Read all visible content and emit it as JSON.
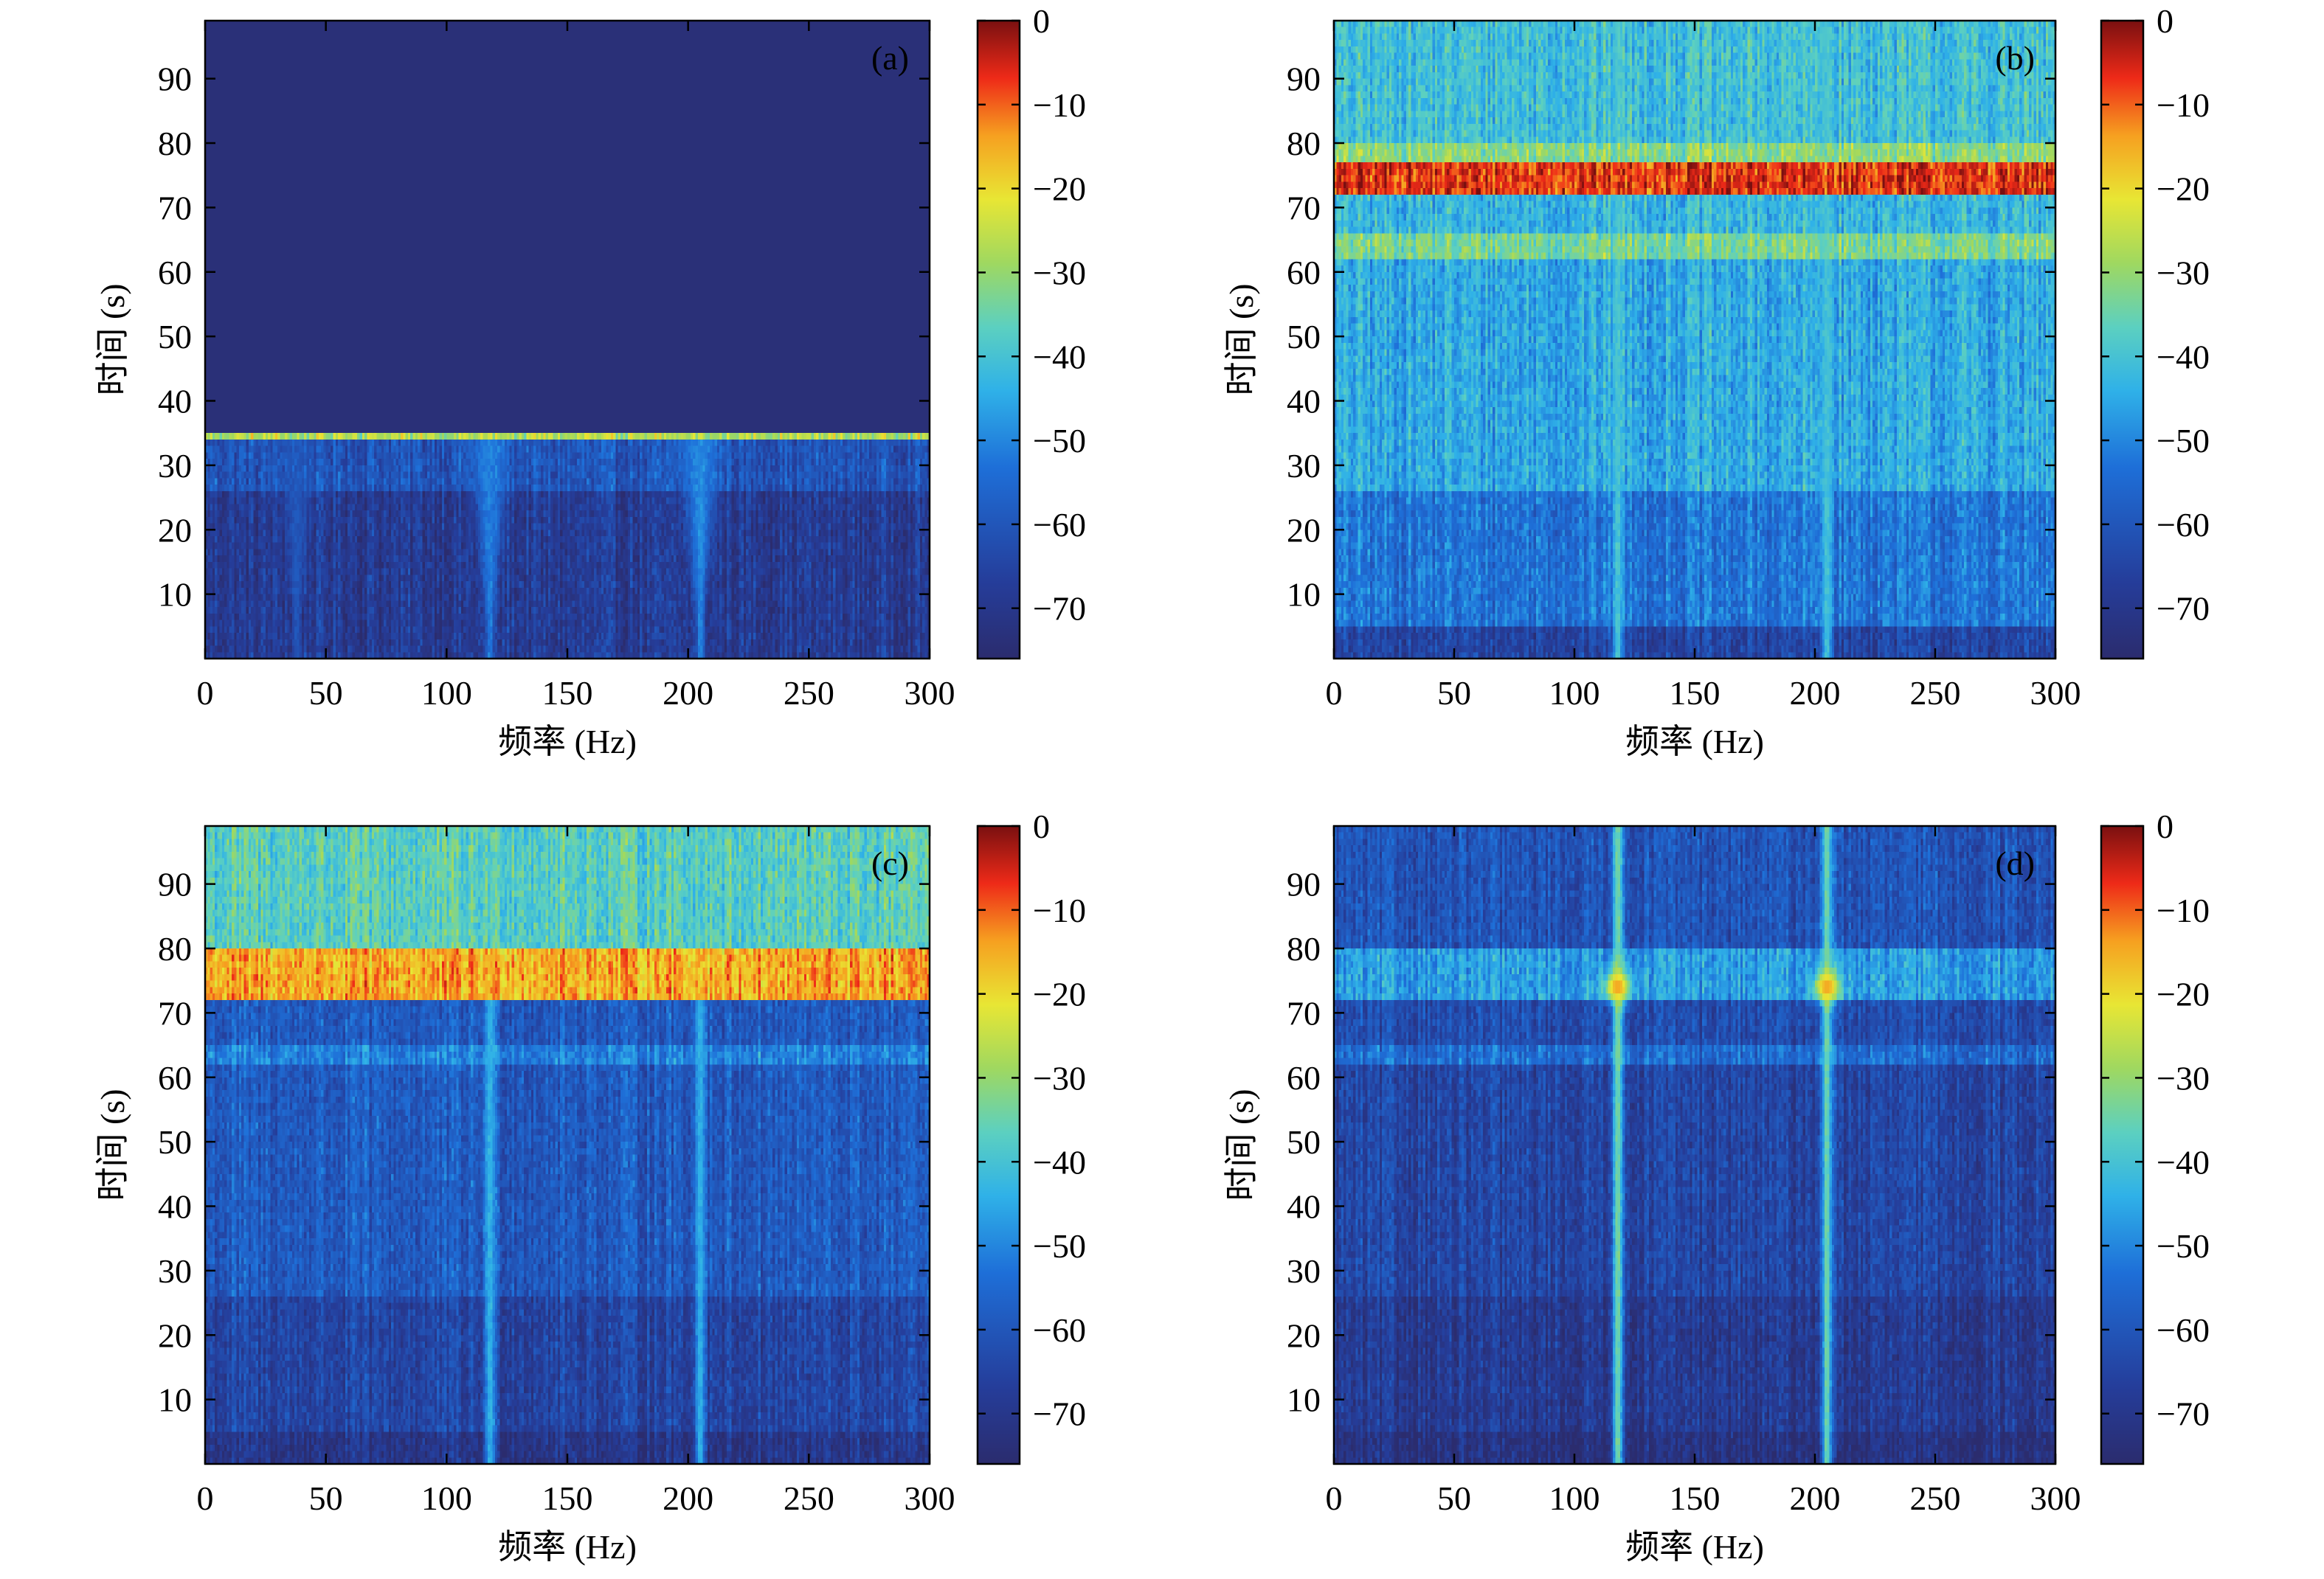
{
  "colorbar": {
    "ticks": [
      0,
      -10,
      -20,
      -30,
      -40,
      -50,
      -60,
      -70
    ],
    "tick_labels": [
      "0",
      "−10",
      "−20",
      "−30",
      "−40",
      "−50",
      "−60",
      "−70"
    ],
    "range": [
      -76,
      0
    ],
    "colormap": "jet"
  },
  "chart_data": [
    {
      "type": "heatmap",
      "panel_label": "(a)",
      "xlabel": "频率 (Hz)",
      "ylabel": "时间 (s)",
      "xlim": [
        0,
        300
      ],
      "ylim": [
        0,
        99
      ],
      "xticks": [
        0,
        50,
        100,
        150,
        200,
        250,
        300
      ],
      "yticks": [
        10,
        20,
        30,
        40,
        50,
        60,
        70,
        80,
        90
      ],
      "background_db": -74,
      "signal_bands": [
        {
          "t_from": 0,
          "t_to": 26,
          "level_db": -70
        },
        {
          "t_from": 26,
          "t_to": 34,
          "level_db": -62
        },
        {
          "t_from": 34,
          "t_to": 35,
          "level_db": -28
        }
      ],
      "signal_end_s": 35,
      "lines": [
        {
          "f_hz": 118,
          "level_db": -52,
          "t_from": 0,
          "t_to": 35
        },
        {
          "f_hz": 205,
          "level_db": -50,
          "t_from": 0,
          "t_to": 35
        },
        {
          "f_hz": 38,
          "level_db": -60,
          "t_from": 0,
          "t_to": 35
        }
      ],
      "colorbar_range": [
        -76,
        0
      ]
    },
    {
      "type": "heatmap",
      "panel_label": "(b)",
      "xlabel": "频率 (Hz)",
      "ylabel": "时间 (s)",
      "xlim": [
        0,
        300
      ],
      "ylim": [
        0,
        99
      ],
      "xticks": [
        0,
        50,
        100,
        150,
        200,
        250,
        300
      ],
      "yticks": [
        10,
        20,
        30,
        40,
        50,
        60,
        70,
        80,
        90
      ],
      "background_db": -50,
      "signal_bands": [
        {
          "t_from": 0,
          "t_to": 5,
          "level_db": -66
        },
        {
          "t_from": 5,
          "t_to": 26,
          "level_db": -54
        },
        {
          "t_from": 26,
          "t_to": 62,
          "level_db": -46
        },
        {
          "t_from": 62,
          "t_to": 66,
          "level_db": -34
        },
        {
          "t_from": 66,
          "t_to": 72,
          "level_db": -44
        },
        {
          "t_from": 72,
          "t_to": 77,
          "level_db": -8
        },
        {
          "t_from": 77,
          "t_to": 80,
          "level_db": -32
        },
        {
          "t_from": 80,
          "t_to": 99,
          "level_db": -42
        }
      ],
      "lines": [
        {
          "f_hz": 118,
          "level_db": -40,
          "t_from": 0,
          "t_to": 99
        },
        {
          "f_hz": 205,
          "level_db": -40,
          "t_from": 0,
          "t_to": 99
        }
      ],
      "colorbar_range": [
        -76,
        0
      ]
    },
    {
      "type": "heatmap",
      "panel_label": "(c)",
      "xlabel": "频率 (Hz)",
      "ylabel": "时间 (s)",
      "xlim": [
        0,
        300
      ],
      "ylim": [
        0,
        99
      ],
      "xticks": [
        0,
        50,
        100,
        150,
        200,
        250,
        300
      ],
      "yticks": [
        10,
        20,
        30,
        40,
        50,
        60,
        70,
        80,
        90
      ],
      "background_db": -60,
      "signal_bands": [
        {
          "t_from": 0,
          "t_to": 5,
          "level_db": -72
        },
        {
          "t_from": 5,
          "t_to": 26,
          "level_db": -66
        },
        {
          "t_from": 26,
          "t_to": 62,
          "level_db": -60
        },
        {
          "t_from": 62,
          "t_to": 65,
          "level_db": -52
        },
        {
          "t_from": 65,
          "t_to": 72,
          "level_db": -60
        },
        {
          "t_from": 72,
          "t_to": 80,
          "level_db": -16
        },
        {
          "t_from": 80,
          "t_to": 99,
          "level_db": -38
        }
      ],
      "lines": [
        {
          "f_hz": 118,
          "level_db": -44,
          "t_from": 0,
          "t_to": 99
        },
        {
          "f_hz": 205,
          "level_db": -44,
          "t_from": 0,
          "t_to": 99
        }
      ],
      "colorbar_range": [
        -76,
        0
      ]
    },
    {
      "type": "heatmap",
      "panel_label": "(d)",
      "xlabel": "频率 (Hz)",
      "ylabel": "时间 (s)",
      "xlim": [
        0,
        300
      ],
      "ylim": [
        0,
        99
      ],
      "xticks": [
        0,
        50,
        100,
        150,
        200,
        250,
        300
      ],
      "yticks": [
        10,
        20,
        30,
        40,
        50,
        60,
        70,
        80,
        90
      ],
      "background_db": -66,
      "signal_bands": [
        {
          "t_from": 0,
          "t_to": 5,
          "level_db": -74
        },
        {
          "t_from": 5,
          "t_to": 26,
          "level_db": -70
        },
        {
          "t_from": 26,
          "t_to": 62,
          "level_db": -66
        },
        {
          "t_from": 62,
          "t_to": 65,
          "level_db": -56
        },
        {
          "t_from": 65,
          "t_to": 72,
          "level_db": -64
        },
        {
          "t_from": 72,
          "t_to": 80,
          "level_db": -48
        },
        {
          "t_from": 80,
          "t_to": 99,
          "level_db": -62
        }
      ],
      "lines": [
        {
          "f_hz": 118,
          "level_db": -34,
          "t_from": 0,
          "t_to": 99
        },
        {
          "f_hz": 205,
          "level_db": -34,
          "t_from": 0,
          "t_to": 99
        }
      ],
      "hotspots": [
        {
          "f_hz": 118,
          "t_s": 74,
          "level_db": -14
        },
        {
          "f_hz": 205,
          "t_s": 74,
          "level_db": -14
        }
      ],
      "colorbar_range": [
        -76,
        0
      ]
    }
  ]
}
